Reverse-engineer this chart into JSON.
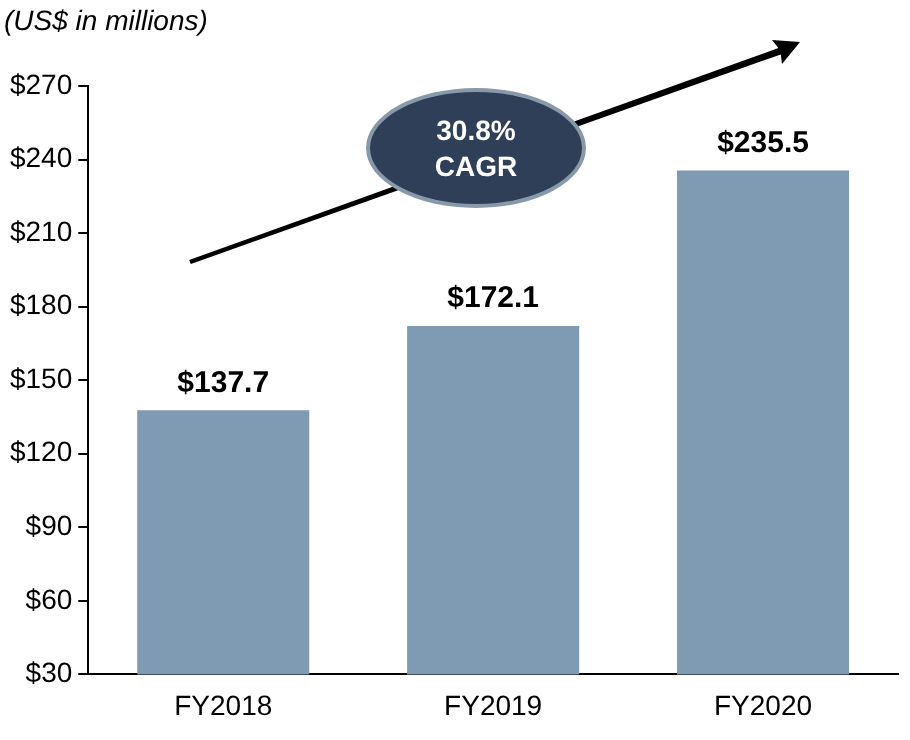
{
  "chart_data": {
    "type": "bar",
    "ylabel": "(US$ in millions)",
    "categories": [
      "FY2018",
      "FY2019",
      "FY2020"
    ],
    "values": [
      137.7,
      172.1,
      235.5
    ],
    "value_labels": [
      "$137.7",
      "$172.1",
      "$235.5"
    ],
    "color": "#7f9bb3",
    "ylim": [
      30,
      270
    ],
    "yticks": [
      {
        "value": 30,
        "label": "$30"
      },
      {
        "value": 60,
        "label": "$60"
      },
      {
        "value": 90,
        "label": "$90"
      },
      {
        "value": 120,
        "label": "$120"
      },
      {
        "value": 150,
        "label": "$150"
      },
      {
        "value": 180,
        "label": "$180"
      },
      {
        "value": 210,
        "label": "$210"
      },
      {
        "value": 240,
        "label": "$240"
      },
      {
        "value": 270,
        "label": "$270"
      }
    ],
    "annotations": [
      "30.8% CAGR"
    ],
    "legend": false
  }
}
